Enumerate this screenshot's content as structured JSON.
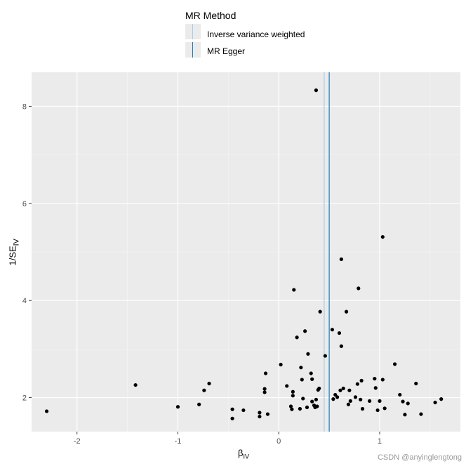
{
  "legend": {
    "title": "MR Method",
    "items": [
      {
        "label": "Inverse variance weighted",
        "color": "#a6cee3"
      },
      {
        "label": "MR Egger",
        "color": "#1f78b4"
      }
    ]
  },
  "axes": {
    "x_title_main": "β",
    "x_title_sub": "IV",
    "y_title_main": "1/SE",
    "y_title_sub": "IV"
  },
  "watermark": "CSDN @anyinglengtong",
  "chart_data": {
    "type": "scatter",
    "xlim": [
      -2.45,
      1.8
    ],
    "ylim": [
      1.3,
      8.7
    ],
    "x_ticks": [
      -2,
      -1,
      0,
      1
    ],
    "y_ticks": [
      2,
      4,
      6,
      8
    ],
    "x_tick_labels": [
      "-2",
      "-1",
      "0",
      "1"
    ],
    "y_tick_labels": [
      "2",
      "4",
      "6",
      "8"
    ],
    "grid": true,
    "legend_position": "top",
    "vlines": [
      {
        "series": "Inverse variance weighted",
        "x": 0.45,
        "color": "#a6cee3"
      },
      {
        "series": "MR Egger",
        "x": 0.5,
        "color": "#1f78b4"
      }
    ],
    "points": [
      [
        -2.3,
        1.72
      ],
      [
        -1.42,
        2.26
      ],
      [
        -1.0,
        1.81
      ],
      [
        -0.79,
        1.86
      ],
      [
        -0.74,
        2.15
      ],
      [
        -0.69,
        2.29
      ],
      [
        -0.46,
        1.76
      ],
      [
        -0.46,
        1.57
      ],
      [
        -0.35,
        1.74
      ],
      [
        -0.19,
        1.69
      ],
      [
        -0.19,
        1.61
      ],
      [
        -0.14,
        2.18
      ],
      [
        -0.14,
        2.11
      ],
      [
        -0.13,
        2.5
      ],
      [
        -0.11,
        1.66
      ],
      [
        0.02,
        2.68
      ],
      [
        0.08,
        2.24
      ],
      [
        0.12,
        1.82
      ],
      [
        0.13,
        1.76
      ],
      [
        0.14,
        2.12
      ],
      [
        0.14,
        2.04
      ],
      [
        0.15,
        4.22
      ],
      [
        0.18,
        3.24
      ],
      [
        0.21,
        1.77
      ],
      [
        0.22,
        2.62
      ],
      [
        0.23,
        2.37
      ],
      [
        0.24,
        1.98
      ],
      [
        0.26,
        3.37
      ],
      [
        0.28,
        1.8
      ],
      [
        0.29,
        2.9
      ],
      [
        0.32,
        2.5
      ],
      [
        0.33,
        2.38
      ],
      [
        0.33,
        1.92
      ],
      [
        0.35,
        1.84
      ],
      [
        0.36,
        1.8
      ],
      [
        0.37,
        1.96
      ],
      [
        0.38,
        1.82
      ],
      [
        0.39,
        2.16
      ],
      [
        0.4,
        2.19
      ],
      [
        0.41,
        3.77
      ],
      [
        0.37,
        8.33
      ],
      [
        0.46,
        2.86
      ],
      [
        0.53,
        3.4
      ],
      [
        0.54,
        1.97
      ],
      [
        0.56,
        2.06
      ],
      [
        0.58,
        2.01
      ],
      [
        0.6,
        3.33
      ],
      [
        0.61,
        2.15
      ],
      [
        0.62,
        3.06
      ],
      [
        0.62,
        4.85
      ],
      [
        0.64,
        2.19
      ],
      [
        0.67,
        3.77
      ],
      [
        0.69,
        1.86
      ],
      [
        0.7,
        2.15
      ],
      [
        0.71,
        1.93
      ],
      [
        0.76,
        2.01
      ],
      [
        0.78,
        2.28
      ],
      [
        0.79,
        4.25
      ],
      [
        0.81,
        1.96
      ],
      [
        0.82,
        2.35
      ],
      [
        0.83,
        1.77
      ],
      [
        0.9,
        1.93
      ],
      [
        0.95,
        2.39
      ],
      [
        0.96,
        2.2
      ],
      [
        0.98,
        1.74
      ],
      [
        1.0,
        1.93
      ],
      [
        1.03,
        2.37
      ],
      [
        1.03,
        5.31
      ],
      [
        1.05,
        1.78
      ],
      [
        1.15,
        2.69
      ],
      [
        1.2,
        2.06
      ],
      [
        1.23,
        1.92
      ],
      [
        1.25,
        1.65
      ],
      [
        1.28,
        1.88
      ],
      [
        1.36,
        2.29
      ],
      [
        1.41,
        1.66
      ],
      [
        1.55,
        1.9
      ],
      [
        1.61,
        1.97
      ]
    ]
  }
}
